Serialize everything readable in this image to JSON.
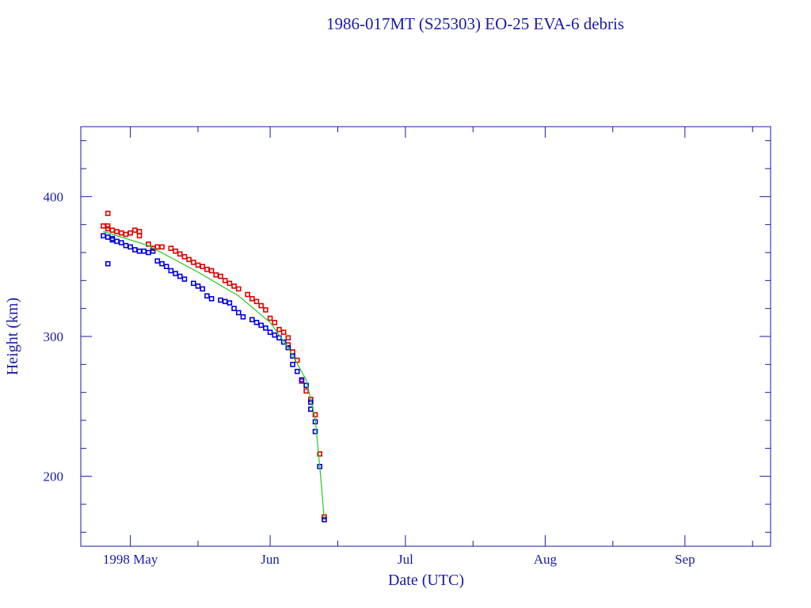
{
  "chart_data": {
    "type": "scatter",
    "title": "1986-017MT (S25303) EO-25 EVA-6 debris",
    "xlabel": "Date (UTC)",
    "ylabel": "Height (km)",
    "xlim": [
      "1998-04-20",
      "1998-09-20"
    ],
    "ylim": [
      150,
      450
    ],
    "x_ticks": [
      {
        "date": "1998-05-01",
        "label": "1998 May"
      },
      {
        "date": "1998-06-01",
        "label": "Jun"
      },
      {
        "date": "1998-07-01",
        "label": "Jul"
      },
      {
        "date": "1998-08-01",
        "label": "Aug"
      },
      {
        "date": "1998-09-01",
        "label": "Sep"
      }
    ],
    "y_ticks": [
      200,
      300,
      400
    ],
    "grid": false,
    "colors": {
      "axis": "#1a1aa6",
      "perigee": "#0000e0",
      "apogee": "#e00000",
      "fit": "#22cc22"
    },
    "series": [
      {
        "marker": "square",
        "color": "#e00000",
        "points": [
          [
            "1998-04-25",
            379
          ],
          [
            "1998-04-26",
            379
          ],
          [
            "1998-04-26",
            388
          ],
          [
            "1998-04-26",
            377
          ],
          [
            "1998-04-27",
            376
          ],
          [
            "1998-04-28",
            375
          ],
          [
            "1998-04-29",
            374
          ],
          [
            "1998-04-30",
            373
          ],
          [
            "1998-05-01",
            374
          ],
          [
            "1998-05-02",
            376
          ],
          [
            "1998-05-03",
            375
          ],
          [
            "1998-05-03",
            372
          ],
          [
            "1998-05-05",
            366
          ],
          [
            "1998-05-06",
            363
          ],
          [
            "1998-05-07",
            364
          ],
          [
            "1998-05-08",
            364
          ],
          [
            "1998-05-10",
            363
          ],
          [
            "1998-05-11",
            361
          ],
          [
            "1998-05-12",
            359
          ],
          [
            "1998-05-13",
            357
          ],
          [
            "1998-05-14",
            355
          ],
          [
            "1998-05-15",
            353
          ],
          [
            "1998-05-16",
            351
          ],
          [
            "1998-05-17",
            350
          ],
          [
            "1998-05-18",
            348
          ],
          [
            "1998-05-19",
            347
          ],
          [
            "1998-05-20",
            344
          ],
          [
            "1998-05-21",
            343
          ],
          [
            "1998-05-22",
            340
          ],
          [
            "1998-05-23",
            338
          ],
          [
            "1998-05-24",
            336
          ],
          [
            "1998-05-25",
            334
          ],
          [
            "1998-05-27",
            330
          ],
          [
            "1998-05-28",
            327
          ],
          [
            "1998-05-29",
            325
          ],
          [
            "1998-05-30",
            322
          ],
          [
            "1998-05-31",
            319
          ],
          [
            "1998-06-01",
            313
          ],
          [
            "1998-06-02",
            310
          ],
          [
            "1998-06-03",
            305
          ],
          [
            "1998-06-04",
            303
          ],
          [
            "1998-06-05",
            299
          ],
          [
            "1998-06-05",
            294
          ],
          [
            "1998-06-06",
            289
          ],
          [
            "1998-06-07",
            283
          ],
          [
            "1998-06-08",
            268
          ],
          [
            "1998-06-09",
            261
          ],
          [
            "1998-06-10",
            255
          ],
          [
            "1998-06-10",
            248
          ],
          [
            "1998-06-11",
            244
          ],
          [
            "1998-06-12",
            216
          ],
          [
            "1998-06-13",
            171
          ]
        ]
      },
      {
        "marker": "square",
        "color": "#0000e0",
        "points": [
          [
            "1998-04-25",
            372
          ],
          [
            "1998-04-26",
            371
          ],
          [
            "1998-04-26",
            352
          ],
          [
            "1998-04-27",
            370
          ],
          [
            "1998-04-27",
            369
          ],
          [
            "1998-04-28",
            368
          ],
          [
            "1998-04-29",
            367
          ],
          [
            "1998-04-30",
            365
          ],
          [
            "1998-05-01",
            364
          ],
          [
            "1998-05-02",
            362
          ],
          [
            "1998-05-03",
            361
          ],
          [
            "1998-05-04",
            361
          ],
          [
            "1998-05-05",
            360
          ],
          [
            "1998-05-06",
            361
          ],
          [
            "1998-05-07",
            354
          ],
          [
            "1998-05-08",
            352
          ],
          [
            "1998-05-09",
            350
          ],
          [
            "1998-05-10",
            347
          ],
          [
            "1998-05-11",
            345
          ],
          [
            "1998-05-12",
            343
          ],
          [
            "1998-05-13",
            341
          ],
          [
            "1998-05-15",
            338
          ],
          [
            "1998-05-16",
            336
          ],
          [
            "1998-05-17",
            334
          ],
          [
            "1998-05-18",
            329
          ],
          [
            "1998-05-19",
            327
          ],
          [
            "1998-05-21",
            326
          ],
          [
            "1998-05-22",
            325
          ],
          [
            "1998-05-23",
            324
          ],
          [
            "1998-05-24",
            320
          ],
          [
            "1998-05-25",
            317
          ],
          [
            "1998-05-26",
            314
          ],
          [
            "1998-05-28",
            312
          ],
          [
            "1998-05-29",
            310
          ],
          [
            "1998-05-30",
            308
          ],
          [
            "1998-05-31",
            306
          ],
          [
            "1998-06-01",
            303
          ],
          [
            "1998-06-02",
            301
          ],
          [
            "1998-06-03",
            299
          ],
          [
            "1998-06-04",
            296
          ],
          [
            "1998-06-05",
            292
          ],
          [
            "1998-06-06",
            286
          ],
          [
            "1998-06-06",
            280
          ],
          [
            "1998-06-07",
            275
          ],
          [
            "1998-06-08",
            269
          ],
          [
            "1998-06-09",
            265
          ],
          [
            "1998-06-10",
            253
          ],
          [
            "1998-06-10",
            248
          ],
          [
            "1998-06-11",
            239
          ],
          [
            "1998-06-11",
            232
          ],
          [
            "1998-06-12",
            207
          ],
          [
            "1998-06-13",
            169
          ]
        ]
      },
      {
        "type": "line",
        "color": "#22cc22",
        "points": [
          [
            "1998-04-25",
            375
          ],
          [
            "1998-05-05",
            365
          ],
          [
            "1998-05-16",
            346
          ],
          [
            "1998-05-25",
            329
          ],
          [
            "1998-06-01",
            310
          ],
          [
            "1998-06-05",
            292
          ],
          [
            "1998-06-09",
            269
          ],
          [
            "1998-06-11",
            241
          ],
          [
            "1998-06-12",
            207
          ],
          [
            "1998-06-13",
            170
          ]
        ]
      }
    ]
  }
}
